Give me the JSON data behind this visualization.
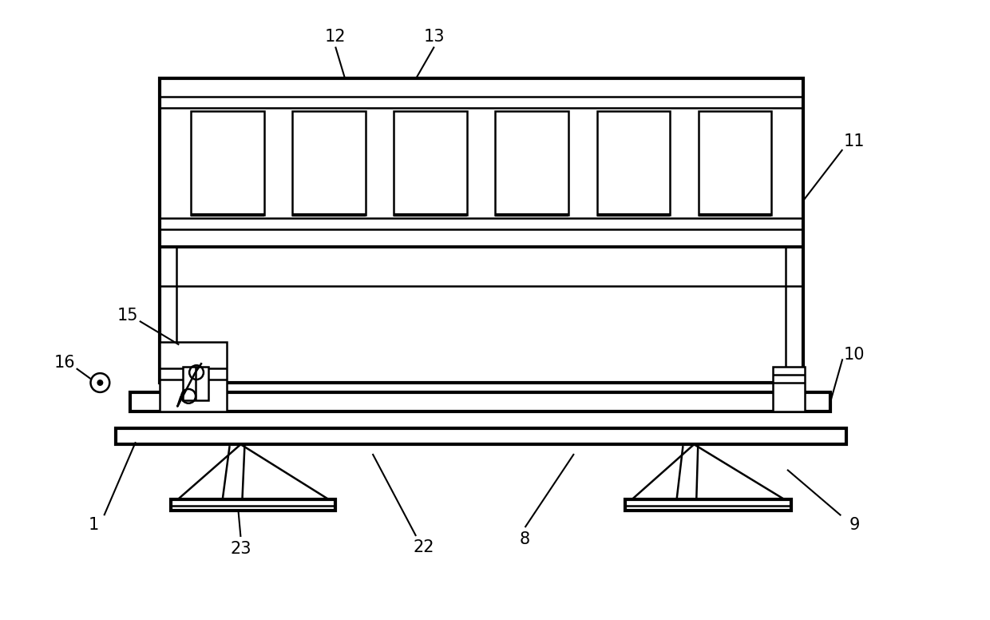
{
  "bg_color": "#ffffff",
  "line_color": "#000000",
  "lw": 1.8,
  "tlw": 3.0,
  "fig_width": 12.4,
  "fig_height": 7.76,
  "annot_fs": 15,
  "annot_lw": 1.5
}
